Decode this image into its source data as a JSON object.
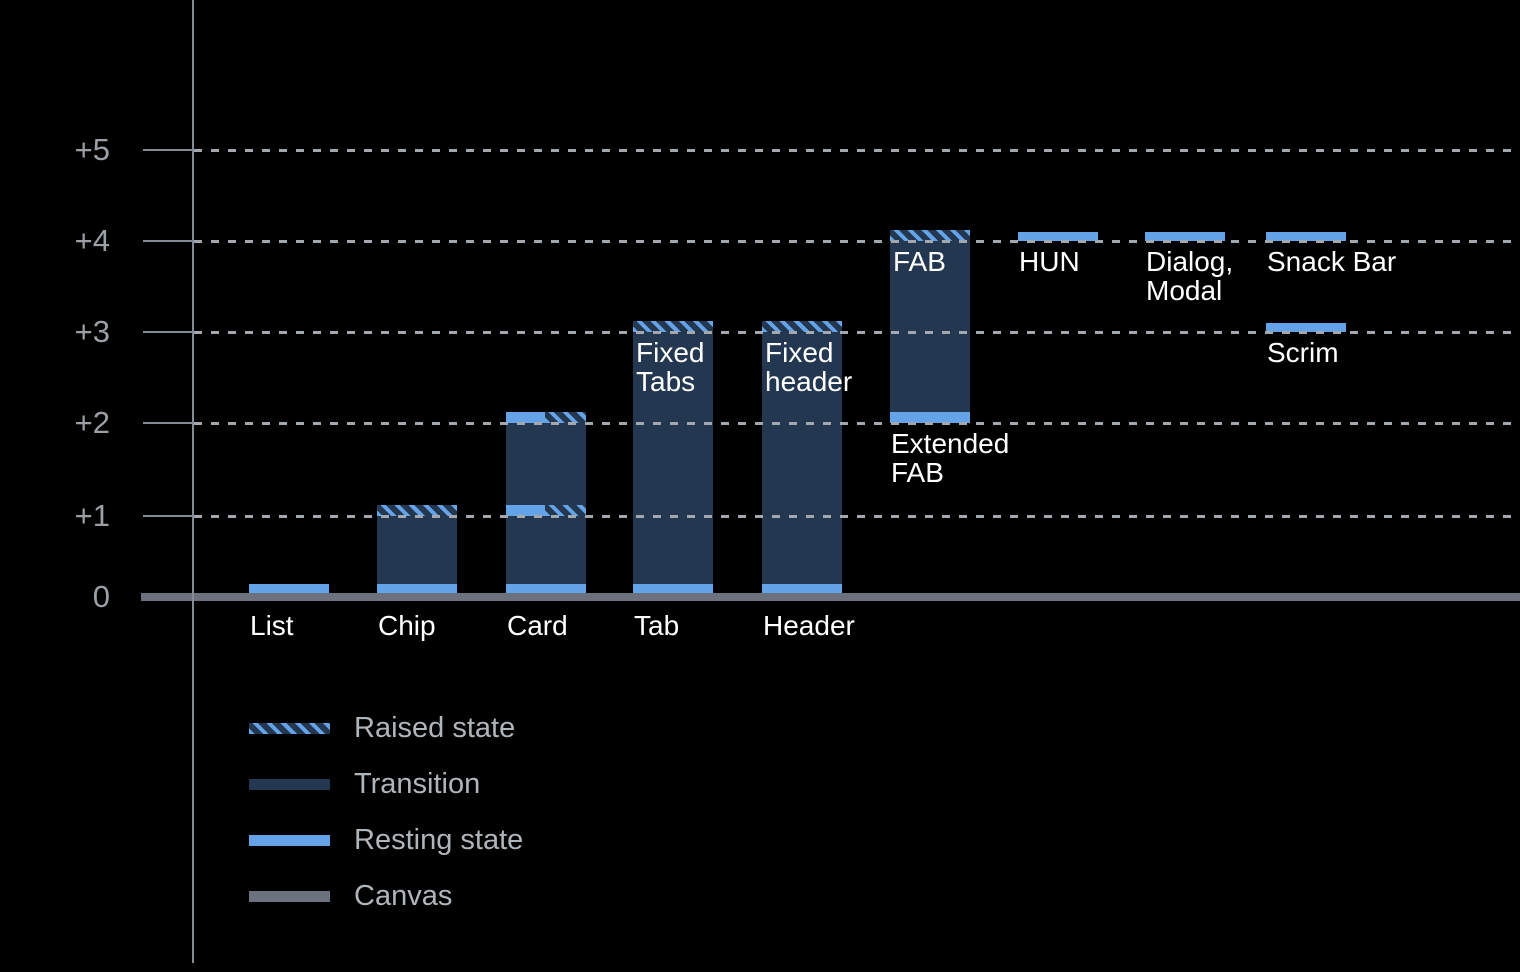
{
  "background": "#000000",
  "colors": {
    "resting": "#64A3E8",
    "transition": "#233850",
    "canvas": "#6B727D",
    "axis": "#848B94",
    "gridline": "#A3A8AE",
    "tick_label": "#9AA0A6",
    "bar_label": "#FFFFFF",
    "legend_label": "#B0B5BA"
  },
  "chart_data": {
    "type": "bar",
    "subject": "elevation-levels",
    "y_axis": {
      "range": [
        0,
        5
      ],
      "gridlines": "dotted",
      "ticks": [
        {
          "label": "+5",
          "level": 5
        },
        {
          "label": "+4",
          "level": 4
        },
        {
          "label": "+3",
          "level": 3
        },
        {
          "label": "+2",
          "level": 2
        },
        {
          "label": "+1",
          "level": 1
        },
        {
          "label": "0",
          "level": 0
        }
      ]
    },
    "bars": [
      {
        "id": "list",
        "col": 0,
        "labels": [
          {
            "text": "List",
            "pos": "axis"
          }
        ],
        "segments": [
          {
            "kind": "resting",
            "from": 0,
            "to": 0.12
          }
        ]
      },
      {
        "id": "chip",
        "col": 1,
        "labels": [
          {
            "text": "Chip",
            "pos": "axis"
          }
        ],
        "segments": [
          {
            "kind": "resting",
            "from": 0,
            "to": 0.12
          },
          {
            "kind": "transition",
            "from": 0.12,
            "to": 1
          },
          {
            "kind": "raised",
            "from": 1,
            "to": 1.12
          }
        ]
      },
      {
        "id": "card",
        "col": 2,
        "labels": [
          {
            "text": "Card",
            "pos": "axis"
          }
        ],
        "segments": [
          {
            "kind": "resting",
            "from": 0,
            "to": 0.12
          },
          {
            "kind": "transition",
            "from": 0.12,
            "to": 1
          },
          {
            "kind": "resting+raised",
            "from": 1,
            "to": 1.12
          },
          {
            "kind": "transition",
            "from": 1.12,
            "to": 2
          },
          {
            "kind": "resting+raised",
            "from": 2,
            "to": 2.12
          }
        ]
      },
      {
        "id": "tab",
        "col": 3,
        "labels": [
          {
            "text": "Tab",
            "pos": "axis"
          },
          {
            "text": "Fixed\nTabs",
            "pos": "inside",
            "level": 3
          }
        ],
        "segments": [
          {
            "kind": "resting",
            "from": 0,
            "to": 0.12
          },
          {
            "kind": "transition",
            "from": 0.12,
            "to": 3
          },
          {
            "kind": "raised",
            "from": 3,
            "to": 3.12
          }
        ]
      },
      {
        "id": "header",
        "col": 4,
        "labels": [
          {
            "text": "Header",
            "pos": "axis"
          },
          {
            "text": "Fixed\nheader",
            "pos": "inside",
            "level": 3
          }
        ],
        "segments": [
          {
            "kind": "resting",
            "from": 0,
            "to": 0.12
          },
          {
            "kind": "transition",
            "from": 0.12,
            "to": 3
          },
          {
            "kind": "raised",
            "from": 3,
            "to": 3.12
          }
        ]
      },
      {
        "id": "extended-fab",
        "col": 5,
        "labels": [
          {
            "text": "FAB",
            "pos": "inside",
            "level": 4
          },
          {
            "text": "Extended\nFAB",
            "pos": "below",
            "level": 2
          }
        ],
        "segments": [
          {
            "kind": "resting",
            "from": 2,
            "to": 2.12
          },
          {
            "kind": "transition",
            "from": 2.12,
            "to": 4
          },
          {
            "kind": "raised",
            "from": 4,
            "to": 4.12
          }
        ]
      },
      {
        "id": "hun",
        "col": 6,
        "labels": [
          {
            "text": "HUN",
            "pos": "below",
            "level": 4
          }
        ],
        "segments": [
          {
            "kind": "resting",
            "from": 4,
            "to": 4.1
          }
        ]
      },
      {
        "id": "dialog-modal",
        "col": 7,
        "labels": [
          {
            "text": "Dialog,\nModal",
            "pos": "below",
            "level": 4
          }
        ],
        "segments": [
          {
            "kind": "resting",
            "from": 4,
            "to": 4.1
          }
        ]
      },
      {
        "id": "snack-bar",
        "col": 8,
        "labels": [
          {
            "text": "Snack Bar",
            "pos": "below",
            "level": 4
          }
        ],
        "segments": [
          {
            "kind": "resting",
            "from": 4,
            "to": 4.1
          }
        ]
      },
      {
        "id": "scrim",
        "col": 8,
        "labels": [
          {
            "text": "Scrim",
            "pos": "below",
            "level": 3
          }
        ],
        "segments": [
          {
            "kind": "resting",
            "from": 3,
            "to": 3.1
          }
        ]
      }
    ],
    "legend": {
      "position": "bottom-left",
      "items": [
        {
          "label": "Raised state",
          "kind": "raised"
        },
        {
          "label": "Transition",
          "kind": "transition"
        },
        {
          "label": "Resting state",
          "kind": "resting"
        },
        {
          "label": "Canvas",
          "kind": "canvas"
        }
      ]
    }
  }
}
